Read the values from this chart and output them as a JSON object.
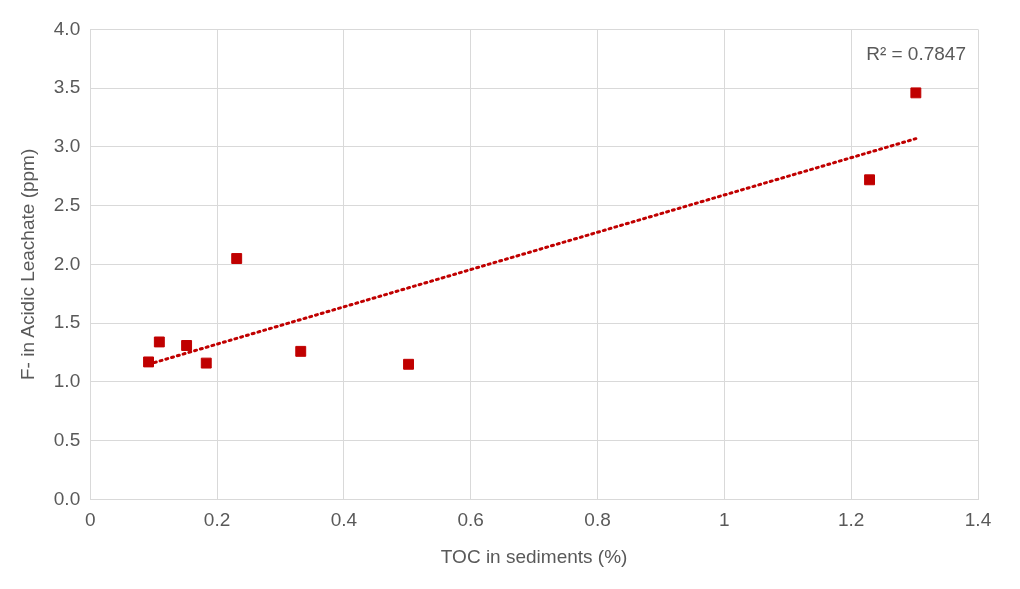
{
  "chart_data": {
    "type": "scatter",
    "xlabel": "TOC in sediments (%)",
    "ylabel": "F- in Acidic Leachate (ppm)",
    "annotations": [
      "R² = 0.7847"
    ],
    "x": [
      0.092,
      0.109,
      0.152,
      0.183,
      0.231,
      0.332,
      0.502,
      1.229,
      1.302
    ],
    "series": [
      {
        "color": "#c00000",
        "marker": "square",
        "values": [
          1.17,
          1.34,
          1.31,
          1.16,
          2.05,
          1.26,
          1.15,
          2.72,
          3.46
        ]
      },
      {
        "type": "line",
        "color": "#c00000",
        "line_style": "dotted",
        "marker": "none",
        "x": [
          0.092,
          1.302
        ],
        "values": [
          1.15,
          3.07
        ]
      }
    ],
    "xlim": [
      0,
      1.4
    ],
    "xticks": [
      0,
      0.2,
      0.4,
      0.6,
      0.8,
      1,
      1.2,
      1.4
    ],
    "ylim": [
      0,
      4
    ],
    "yticks": [
      {
        "value": 0,
        "label": "0.0"
      },
      {
        "value": 0.5,
        "label": "0.5"
      },
      {
        "value": 1,
        "label": "1.0"
      },
      {
        "value": 1.5,
        "label": "1.5"
      },
      {
        "value": 2,
        "label": "2.0"
      },
      {
        "value": 2.5,
        "label": "2.5"
      },
      {
        "value": 3,
        "label": "3.0"
      },
      {
        "value": 3.5,
        "label": "3.5"
      },
      {
        "value": 4,
        "label": "4.0"
      }
    ],
    "grid": true,
    "legend": false
  }
}
